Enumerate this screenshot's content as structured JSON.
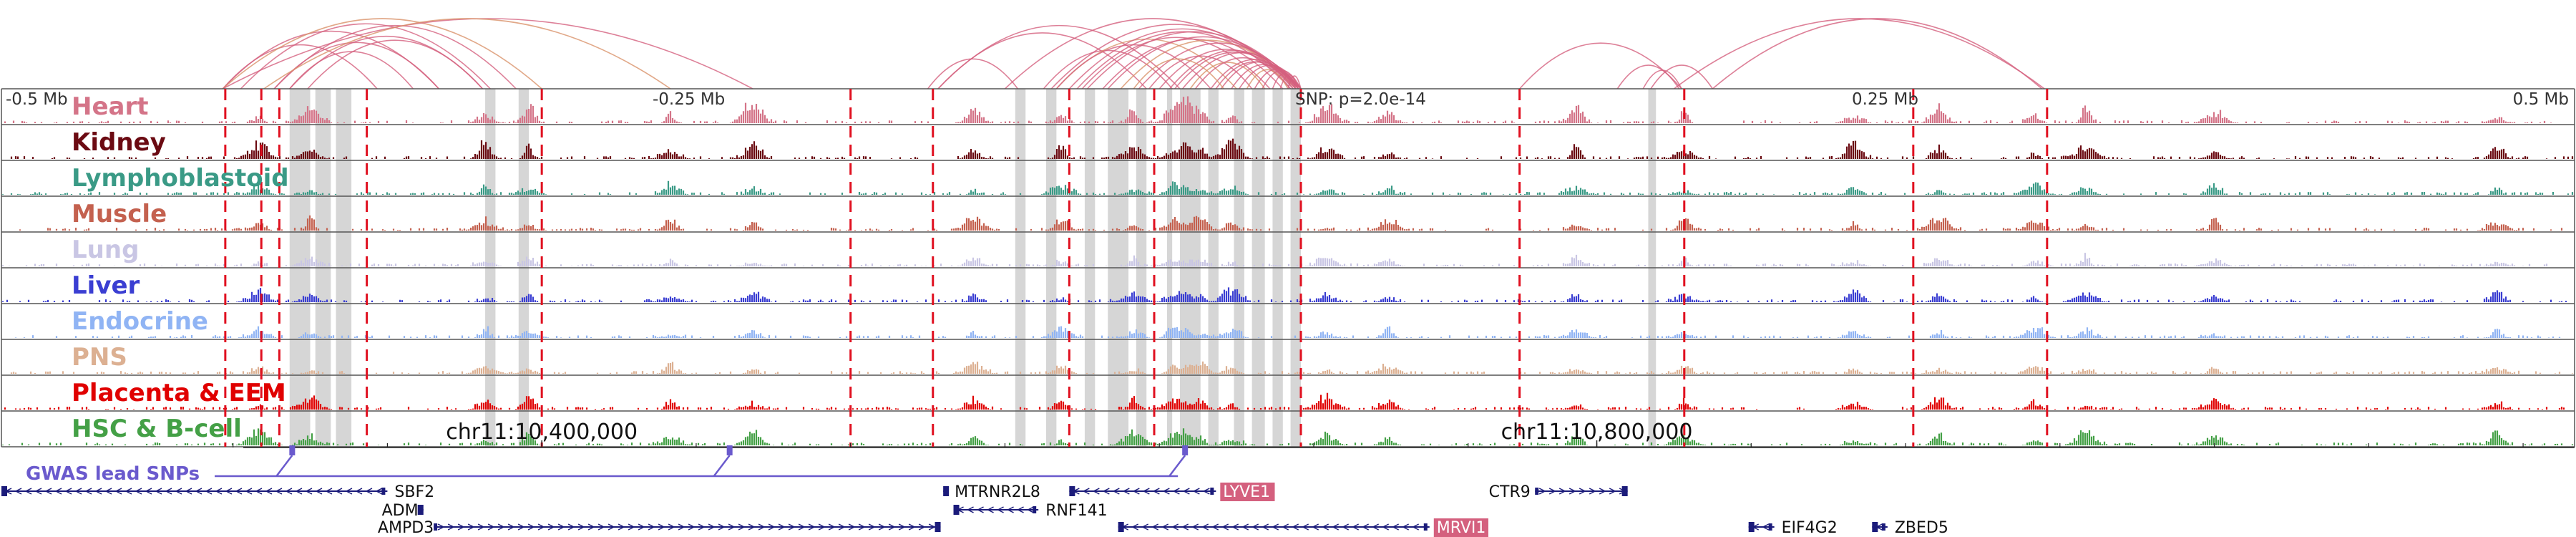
{
  "browser": {
    "position_labels": {
      "left": "-0.5 Mb",
      "mid_left": "-0.25 Mb",
      "snp": "SNP: p=2.0e-14",
      "mid_right": "0.25 Mb",
      "right": "0.5 Mb"
    },
    "window_kb": [
      -500,
      500
    ],
    "lead_snp_kb": -40,
    "tracks": [
      {
        "name": "Heart",
        "color": "#d47488"
      },
      {
        "name": "Kidney",
        "color": "#6b0a12"
      },
      {
        "name": "Lymphoblastoid",
        "color": "#3a9a86"
      },
      {
        "name": "Muscle",
        "color": "#c4614f"
      },
      {
        "name": "Lung",
        "color": "#c9c6e4"
      },
      {
        "name": "Liver",
        "color": "#3a3ed2"
      },
      {
        "name": "Endocrine",
        "color": "#90b4f4"
      },
      {
        "name": "PNS",
        "color": "#dcb092"
      },
      {
        "name": "Placenta & EEM",
        "color": "#e00000"
      },
      {
        "name": "HSC & B-cell",
        "color": "#44a046"
      }
    ],
    "peaks_kb": [
      -400,
      -380,
      -312,
      -295,
      -240,
      -208,
      -122,
      -88,
      -60,
      -45,
      -40,
      -34,
      -22,
      15,
      39,
      112,
      154,
      220,
      253,
      290,
      310,
      360,
      470
    ],
    "red_dashed_lines_kb": [
      -413,
      -399,
      -392,
      -358,
      -290,
      -170,
      -138,
      -85,
      -52,
      5,
      90,
      154,
      243,
      295
    ],
    "grey_bands_kb": [
      {
        "start": -388,
        "end": -380
      },
      {
        "start": -378,
        "end": -372
      },
      {
        "start": -370,
        "end": -364
      },
      {
        "start": -312,
        "end": -308
      },
      {
        "start": -299,
        "end": -295
      },
      {
        "start": -106,
        "end": -102
      },
      {
        "start": -94,
        "end": -90
      },
      {
        "start": -79,
        "end": -75
      },
      {
        "start": -70,
        "end": -62
      },
      {
        "start": -59,
        "end": -55
      },
      {
        "start": -47,
        "end": -45
      },
      {
        "start": -42,
        "end": -34
      },
      {
        "start": -31,
        "end": -27
      },
      {
        "start": -21,
        "end": -17
      },
      {
        "start": -14,
        "end": -9
      },
      {
        "start": -6,
        "end": -2
      },
      {
        "start": 1,
        "end": 5
      },
      {
        "start": 140,
        "end": 143
      }
    ],
    "loops_kb": [
      {
        "from": -414,
        "to": -354
      },
      {
        "from": -414,
        "to": -330
      },
      {
        "from": -407,
        "to": -310
      },
      {
        "from": -414,
        "to": -290
      },
      {
        "from": -394,
        "to": -300
      },
      {
        "from": -394,
        "to": -330
      },
      {
        "from": -388,
        "to": -340
      },
      {
        "from": -388,
        "to": -313
      },
      {
        "from": -381,
        "to": -313
      },
      {
        "from": -414,
        "to": -208
      },
      {
        "from": -398,
        "to": -240
      },
      {
        "from": -140,
        "to": -105
      },
      {
        "from": -136,
        "to": -55
      },
      {
        "from": -136,
        "to": -42
      },
      {
        "from": -110,
        "to": 5
      },
      {
        "from": -95,
        "to": -45
      },
      {
        "from": -92,
        "to": 4
      },
      {
        "from": -90,
        "to": -20
      },
      {
        "from": -85,
        "to": 3
      },
      {
        "from": -82,
        "to": 1
      },
      {
        "from": -80,
        "to": -7
      },
      {
        "from": -78,
        "to": 5
      },
      {
        "from": -72,
        "to": -2
      },
      {
        "from": -70,
        "to": 4
      },
      {
        "from": -65,
        "to": 3
      },
      {
        "from": -58,
        "to": 5
      },
      {
        "from": -54,
        "to": -14
      },
      {
        "from": -50,
        "to": 2
      },
      {
        "from": -46,
        "to": 4
      },
      {
        "from": -44,
        "to": 3
      },
      {
        "from": -41,
        "to": 5
      },
      {
        "from": -38,
        "to": -9
      },
      {
        "from": -36,
        "to": 1
      },
      {
        "from": -30,
        "to": 4
      },
      {
        "from": -28,
        "to": 2
      },
      {
        "from": -26,
        "to": 4
      },
      {
        "from": -22,
        "to": 3
      },
      {
        "from": -19,
        "to": 5
      },
      {
        "from": -16,
        "to": 0
      },
      {
        "from": -13,
        "to": 4
      },
      {
        "from": -10,
        "to": 5
      },
      {
        "from": -6,
        "to": 3
      },
      {
        "from": -3,
        "to": 4
      },
      {
        "from": 0,
        "to": 5
      },
      {
        "from": -90,
        "to": -30
      },
      {
        "from": -60,
        "to": -25
      },
      {
        "from": 90,
        "to": 153
      },
      {
        "from": 128,
        "to": 152
      },
      {
        "from": 138,
        "to": 153
      },
      {
        "from": 141,
        "to": 165
      },
      {
        "from": 150,
        "to": 294
      },
      {
        "from": 165,
        "to": 293
      }
    ],
    "axis": {
      "ticks": [
        {
          "kb": -290,
          "label": "chr11:10,400,000"
        },
        {
          "kb": 120,
          "label": "chr11:10,800,000"
        }
      ],
      "minor_ticks_kb": [
        -410,
        -350,
        -290,
        -230,
        -170,
        -110,
        -50,
        10,
        70,
        120,
        180,
        240,
        300,
        360,
        420,
        480
      ]
    },
    "gwas": {
      "label": "GWAS lead SNPs",
      "snps_kb": [
        -387,
        -217,
        -40
      ]
    },
    "genes": [
      {
        "name": "SBF2",
        "start": -500,
        "end": -350,
        "row": 0,
        "strand": "-",
        "highlight": false,
        "label_side": "right"
      },
      {
        "name": "ADM",
        "start": -338,
        "end": -336,
        "row": 1,
        "strand": "+",
        "highlight": false,
        "label_side": "left"
      },
      {
        "name": "AMPD3",
        "start": -332,
        "end": -135,
        "row": 2,
        "strand": "+",
        "highlight": false,
        "label_side": "left"
      },
      {
        "name": "MTRNR2L8",
        "start": -134,
        "end": -133,
        "row": 0,
        "strand": "-",
        "highlight": false,
        "label_side": "right"
      },
      {
        "name": "RNF141",
        "start": -130,
        "end": -97,
        "row": 1,
        "strand": "-",
        "highlight": false,
        "label_side": "right"
      },
      {
        "name": "LYVE1",
        "start": -85,
        "end": -28,
        "row": 0,
        "strand": "-",
        "highlight": true,
        "label_side": "right"
      },
      {
        "name": "MRVI1",
        "start": -66,
        "end": 55,
        "row": 2,
        "strand": "-",
        "highlight": true,
        "label_side": "right"
      },
      {
        "name": "CTR9",
        "start": 96,
        "end": 132,
        "row": 0,
        "strand": "+",
        "highlight": false,
        "label_side": "left"
      },
      {
        "name": "EIF4G2",
        "start": 179,
        "end": 189,
        "row": 2,
        "strand": "-",
        "highlight": false,
        "label_side": "right"
      },
      {
        "name": "ZBED5",
        "start": 227,
        "end": 233,
        "row": 2,
        "strand": "-",
        "highlight": false,
        "label_side": "right"
      }
    ],
    "colors": {
      "loop": "#d4607e",
      "loop_orange": "#d9926a",
      "red_line": "#e01020",
      "grey_band": "#c8c8c8",
      "gwas": "#6a5acd",
      "gene": "#1b1b7a",
      "gene_highlight": "#d4607e",
      "frame": "#555555"
    }
  }
}
